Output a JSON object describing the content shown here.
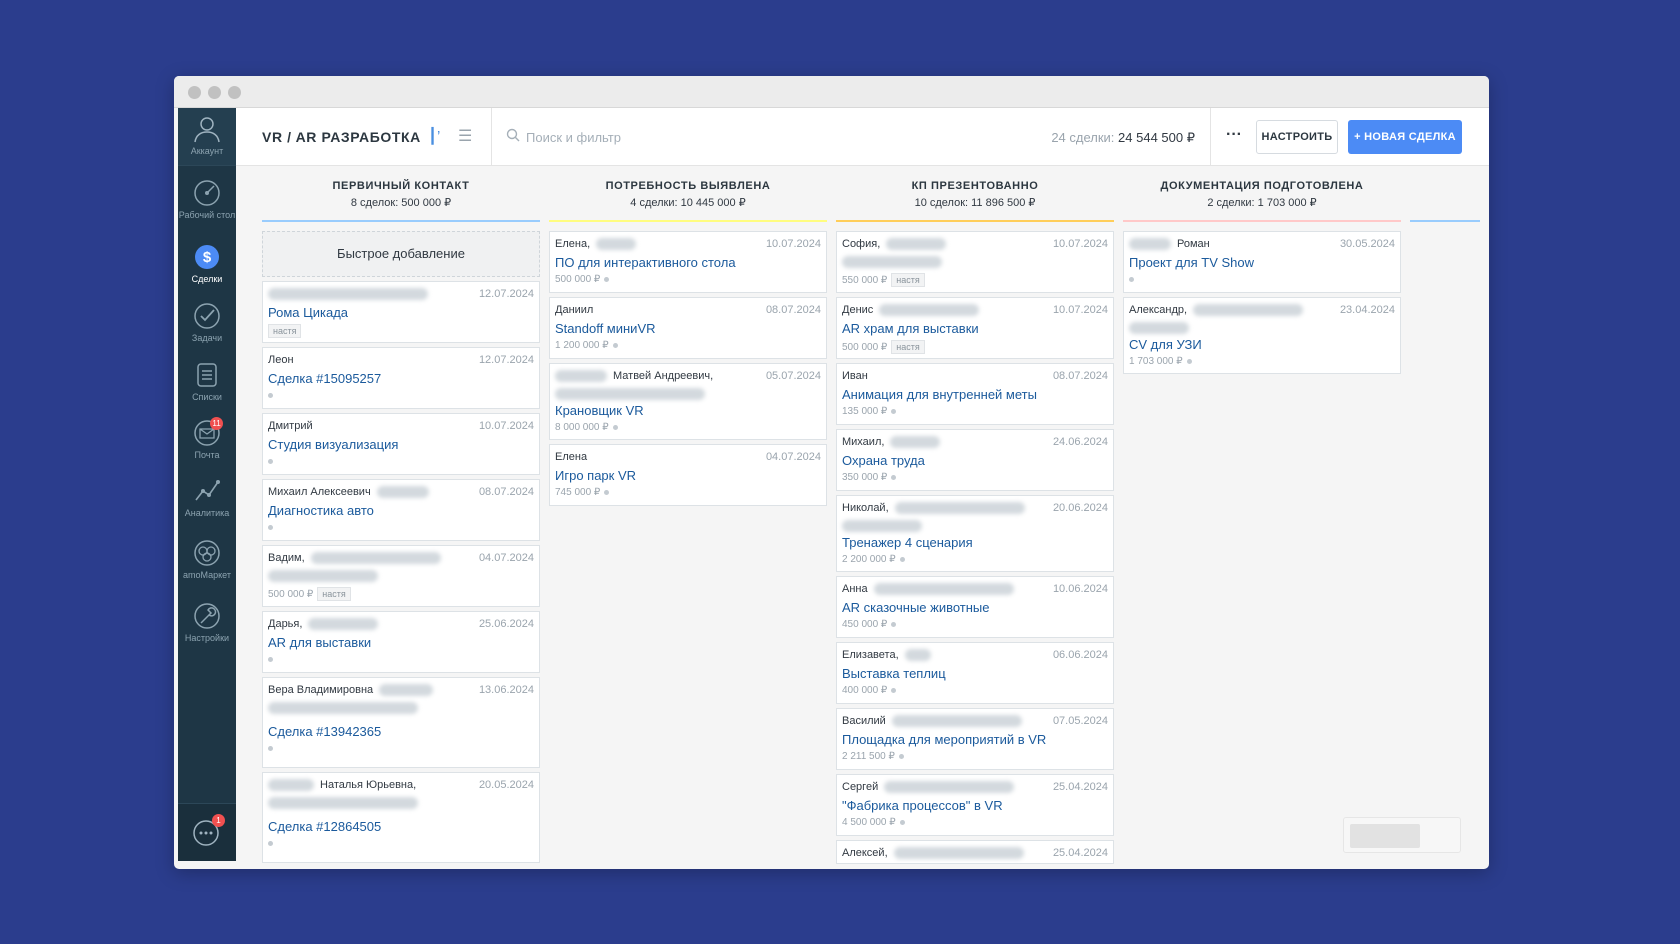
{
  "sidebar": {
    "account": "Аккаунт",
    "items": [
      {
        "label": "Рабочий стол",
        "icon": "dashboard-icon"
      },
      {
        "label": "Сделки",
        "icon": "deals-icon"
      },
      {
        "label": "Задачи",
        "icon": "tasks-icon"
      },
      {
        "label": "Списки",
        "icon": "lists-icon"
      },
      {
        "label": "Почта",
        "icon": "mail-icon",
        "badge": "11"
      },
      {
        "label": "Аналитика",
        "icon": "analytics-icon"
      },
      {
        "label": "amoМаркет",
        "icon": "market-icon"
      },
      {
        "label": "Настройки",
        "icon": "settings-icon"
      }
    ],
    "chat_badge": "1"
  },
  "header": {
    "title": "VR / AR РАЗРАБОТКА",
    "search_placeholder": "Поиск и фильтр",
    "summary_count": "24 сделки:",
    "summary_total": "24 544 500 ₽",
    "more": "···",
    "config_button": "НАСТРОИТЬ",
    "new_deal_button": "+ НОВАЯ СДЕЛКА"
  },
  "colors": {
    "accent": "#4c8bf5",
    "sidebar": "#1e3645",
    "link": "#1b5a9c",
    "col_1": "#99ccfd",
    "col_2": "#fffd7f",
    "col_3": "#ffce5a",
    "col_4": "#ffc8c8"
  },
  "columns": [
    {
      "name": "ПЕРВИЧНЫЙ КОНТАКТ",
      "summary": "8 сделок: 500 000 ₽",
      "quick_add": "Быстрое добавление",
      "cards": [
        {
          "contact": "",
          "date": "12.07.2024",
          "deal": "Рома Цикада",
          "price": "",
          "tag": "настя"
        },
        {
          "contact": "Леон",
          "date": "12.07.2024",
          "deal": "Сделка #15095257",
          "price": "",
          "tag": ""
        },
        {
          "contact": "Дмитрий",
          "date": "10.07.2024",
          "deal": "Студия визуализация",
          "price": "",
          "tag": ""
        },
        {
          "contact": "Михаил Алексеевич",
          "date": "08.07.2024",
          "deal": "Диагностика авто",
          "price": "",
          "tag": ""
        },
        {
          "contact": "Вадим,",
          "date": "04.07.2024",
          "deal": "",
          "price": "500 000 ₽",
          "tag": "настя"
        },
        {
          "contact": "Дарья,",
          "date": "25.06.2024",
          "deal": "AR для выставки",
          "price": "",
          "tag": ""
        },
        {
          "contact": "Вера Владимировна",
          "date": "13.06.2024",
          "deal": "Сделка #13942365",
          "price": "",
          "tag": ""
        },
        {
          "contact": "Наталья Юрьевна,",
          "date": "20.05.2024",
          "deal": "Сделка #12864505",
          "price": "",
          "tag": ""
        }
      ]
    },
    {
      "name": "ПОТРЕБНОСТЬ ВЫЯВЛЕНА",
      "summary": "4 сделки: 10 445 000 ₽",
      "cards": [
        {
          "contact": "Елена,",
          "date": "10.07.2024",
          "deal": "ПО для интерактивного стола",
          "price": "500 000 ₽",
          "tag": ""
        },
        {
          "contact": "Даниил",
          "date": "08.07.2024",
          "deal": "Standoff миниVR",
          "price": "1 200 000 ₽",
          "tag": ""
        },
        {
          "contact": "Матвей Андреевич,",
          "date": "05.07.2024",
          "deal": "Крановщик VR",
          "price": "8 000 000 ₽",
          "tag": ""
        },
        {
          "contact": "Елена",
          "date": "04.07.2024",
          "deal": "Игро парк VR",
          "price": "745 000 ₽",
          "tag": ""
        }
      ]
    },
    {
      "name": "КП ПРЕЗЕНТОВАННО",
      "summary": "10 сделок: 11 896 500 ₽",
      "cards": [
        {
          "contact": "София,",
          "date": "10.07.2024",
          "deal": "",
          "price": "550 000 ₽",
          "tag": "настя"
        },
        {
          "contact": "Денис",
          "date": "10.07.2024",
          "deal": "AR храм для выставки",
          "price": "500 000 ₽",
          "tag": "настя"
        },
        {
          "contact": "Иван",
          "date": "08.07.2024",
          "deal": "Анимация для внутренней меты",
          "price": "135 000 ₽",
          "tag": ""
        },
        {
          "contact": "Михаил,",
          "date": "24.06.2024",
          "deal": "Охрана труда",
          "price": "350 000 ₽",
          "tag": ""
        },
        {
          "contact": "Николай,",
          "date": "20.06.2024",
          "deal": "Тренажер 4 сценария",
          "price": "2 200 000 ₽",
          "tag": ""
        },
        {
          "contact": "Анна",
          "date": "10.06.2024",
          "deal": "AR сказочные животные",
          "price": "450 000 ₽",
          "tag": ""
        },
        {
          "contact": "Елизавета,",
          "date": "06.06.2024",
          "deal": "Выставка теплиц",
          "price": "400 000 ₽",
          "tag": ""
        },
        {
          "contact": "Василий",
          "date": "07.05.2024",
          "deal": "Площадка для мероприятий в VR",
          "price": "2 211 500 ₽",
          "tag": ""
        },
        {
          "contact": "Сергей",
          "date": "25.04.2024",
          "deal": "\"Фабрика процессов\" в VR",
          "price": "4 500 000 ₽",
          "tag": ""
        },
        {
          "contact": "Алексей,",
          "date": "25.04.2024",
          "deal": "",
          "price": "",
          "tag": ""
        }
      ]
    },
    {
      "name": "ДОКУМЕНТАЦИЯ ПОДГОТОВЛЕНА",
      "summary": "2 сделки: 1 703 000 ₽",
      "cards": [
        {
          "contact": "Роман",
          "date": "30.05.2024",
          "deal": "Проект для TV Show",
          "price": "",
          "tag": ""
        },
        {
          "contact": "Александр,",
          "date": "23.04.2024",
          "deal": "CV для УЗИ",
          "price": "1 703 000 ₽",
          "tag": ""
        }
      ]
    }
  ]
}
